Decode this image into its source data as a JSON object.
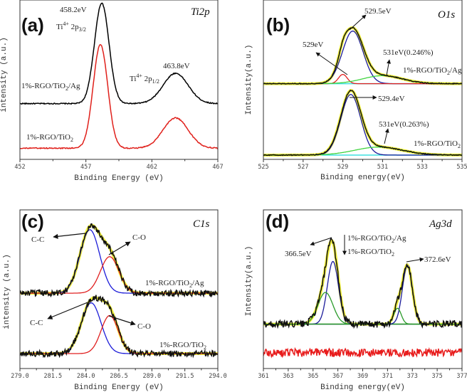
{
  "chart_data": [
    {
      "type": "line",
      "panel_label": "(a)",
      "title": "Ti2p",
      "xlabel": "Binding Energy (eV)",
      "ylabel": "intensity (a.u.)",
      "xlim": [
        452,
        467
      ],
      "xticks": [
        "452",
        "457",
        "462",
        "467"
      ],
      "ylim": [
        0,
        100
      ],
      "spectra": [
        {
          "label": {
            "main": "1%-RGO/TiO",
            "sub": "2",
            "tail": "/Ag"
          },
          "color": "#000000",
          "baseline": 35,
          "noise": 0.3,
          "peaks": [
            {
              "center": 458.2,
              "height": 63,
              "sigma": 0.55
            },
            {
              "center": 463.8,
              "height": 19,
              "sigma": 0.95
            }
          ]
        },
        {
          "label": {
            "main": "1%-RGO/TiO",
            "sub": "2",
            "tail": ""
          },
          "color": "#e0201b",
          "baseline": 7,
          "noise": 0.3,
          "peaks": [
            {
              "center": 458.1,
              "height": 65,
              "sigma": 0.55
            },
            {
              "center": 463.8,
              "height": 19,
              "sigma": 0.95
            }
          ]
        }
      ],
      "components": [],
      "annotations": [
        {
          "pre": "458.2eV",
          "sup": "",
          "mid": "",
          "sub": ""
        },
        {
          "pre": "Ti",
          "sup": "4+",
          "mid": " 2p",
          "sub": "3/2"
        },
        {
          "pre": "463.8eV",
          "sup": "",
          "mid": "",
          "sub": ""
        },
        {
          "pre": "Ti",
          "sup": "4+",
          "mid": " 2p",
          "sub": "1/2"
        }
      ]
    },
    {
      "type": "line",
      "panel_label": "(b)",
      "title": "O1s",
      "xlabel": "Binding energy(eV)",
      "ylabel": "Intensity(a.u.)",
      "xlim": [
        525,
        535
      ],
      "xticks": [
        "525",
        "527",
        "529",
        "531",
        "533",
        "535"
      ],
      "ylim": [
        0,
        100
      ],
      "envelope_color": "#f2f23a",
      "baseline_color": "#3fe0e0",
      "spectra": [
        {
          "label": {
            "main": "1%-RGO/TiO",
            "sub": "2",
            "tail": "/Ag"
          },
          "color": "#111111",
          "baseline": 47.5,
          "noise": 0.25,
          "peaks": [
            {
              "center": 529.5,
              "height": 33,
              "sigma": 0.52
            },
            {
              "center": 529.0,
              "height": 5.8,
              "sigma": 0.22
            },
            {
              "center": 531.0,
              "height": 5,
              "sigma": 1.0
            }
          ]
        },
        {
          "label": {
            "main": "1%-RGO/TiO",
            "sub": "2",
            "tail": ""
          },
          "color": "#111111",
          "baseline": 2.7,
          "noise": 0.25,
          "peaks": [
            {
              "center": 529.4,
              "height": 38,
              "sigma": 0.5
            },
            {
              "center": 530.8,
              "height": 5,
              "sigma": 1.2
            }
          ]
        }
      ],
      "components": [
        {
          "color": "#1c1c9a",
          "baseline": 47.5,
          "center": 529.5,
          "height": 33,
          "sigma": 0.52
        },
        {
          "color": "#e02020",
          "baseline": 47.5,
          "center": 529.0,
          "height": 5.8,
          "sigma": 0.22
        },
        {
          "color": "#3ed43e",
          "baseline": 47.5,
          "center": 531.0,
          "height": 5,
          "sigma": 1.0
        },
        {
          "color": "#1c1c9a",
          "baseline": 2.7,
          "center": 529.4,
          "height": 38,
          "sigma": 0.5
        },
        {
          "color": "#3ed43e",
          "baseline": 2.7,
          "center": 530.8,
          "height": 5,
          "sigma": 1.2
        }
      ],
      "annotations": [
        {
          "pre": "529.5eV",
          "sup": "",
          "mid": "",
          "sub": ""
        },
        {
          "pre": "529eV",
          "sup": "",
          "mid": "",
          "sub": ""
        },
        {
          "pre": "531eV(0.246%)",
          "sup": "",
          "mid": "",
          "sub": ""
        },
        {
          "pre": "529.4eV",
          "sup": "",
          "mid": "",
          "sub": ""
        },
        {
          "pre": "531eV(0.263%)",
          "sup": "",
          "mid": "",
          "sub": ""
        }
      ]
    },
    {
      "type": "line",
      "panel_label": "(c)",
      "title": "C1s",
      "xlabel": "Binding Energy (eV)",
      "ylabel": "intensity (a.u.)",
      "xlim": [
        279.0,
        294.0
      ],
      "xticks": [
        "279.0",
        "281.5",
        "284.0",
        "286.5",
        "289.0",
        "291.5",
        "294.0"
      ],
      "ylim": [
        0,
        100
      ],
      "envelope_color": "#f2f23a",
      "spectra": [
        {
          "label": {
            "main": "1%-RGO/TiO",
            "sub": "2",
            "tail": "/Ag"
          },
          "color": "#111111",
          "baseline": 47.5,
          "noise": 2.0,
          "peaks": [
            {
              "center": 284.3,
              "height": 40,
              "sigma": 0.75
            },
            {
              "center": 285.8,
              "height": 23,
              "sigma": 0.7
            }
          ]
        },
        {
          "label": {
            "main": "1%-RGO/TiO",
            "sub": "2",
            "tail": ""
          },
          "color": "#111111",
          "baseline": 9.4,
          "noise": 2.0,
          "peaks": [
            {
              "center": 284.4,
              "height": 32,
              "sigma": 0.75
            },
            {
              "center": 285.8,
              "height": 24,
              "sigma": 0.65
            }
          ]
        }
      ],
      "components": [
        {
          "color": "#1c1cd8",
          "baseline": 47.5,
          "center": 284.3,
          "height": 40,
          "sigma": 0.75
        },
        {
          "color": "#e02020",
          "baseline": 47.5,
          "center": 285.8,
          "height": 23,
          "sigma": 0.7
        },
        {
          "color": "#1c1cd8",
          "baseline": 9.4,
          "center": 284.4,
          "height": 32,
          "sigma": 0.75
        },
        {
          "color": "#e02020",
          "baseline": 9.4,
          "center": 285.8,
          "height": 24,
          "sigma": 0.65
        }
      ],
      "annotations": [
        {
          "pre": "C-C",
          "sup": "",
          "mid": "",
          "sub": ""
        },
        {
          "pre": "C-O",
          "sup": "",
          "mid": "",
          "sub": ""
        },
        {
          "pre": "C-C",
          "sup": "",
          "mid": "",
          "sub": ""
        },
        {
          "pre": "C-O",
          "sup": "",
          "mid": "",
          "sub": ""
        }
      ]
    },
    {
      "type": "line",
      "panel_label": "(d)",
      "title": "Ag3d",
      "xlabel": "Binding energy(eV)",
      "ylabel": "Intensity(a.u.)",
      "xlim": [
        361,
        377
      ],
      "xticks": [
        "361",
        "363",
        "365",
        "367",
        "369",
        "371",
        "373",
        "375",
        "377"
      ],
      "ylim": [
        0,
        100
      ],
      "envelope_color": "#f2f23a",
      "baseline_color": "#2a8a2a",
      "spectra": [
        {
          "label": {
            "main": "1%-RGO/TiO",
            "sub": "2",
            "tail": "/Ag"
          },
          "color": "#111111",
          "baseline": 28,
          "noise": 2.2,
          "peaks": [
            {
              "center": 366.6,
              "height": 39.5,
              "sigma": 0.45
            },
            {
              "center": 366.0,
              "height": 20,
              "sigma": 0.6
            },
            {
              "center": 372.6,
              "height": 37,
              "sigma": 0.4
            },
            {
              "center": 371.8,
              "height": 10,
              "sigma": 0.3
            }
          ]
        },
        {
          "label": {
            "main": "1%-RGO/TiO",
            "sub": "2",
            "tail": ""
          },
          "color": "#e81c1c",
          "baseline": 10,
          "noise": 2.6,
          "peaks": []
        }
      ],
      "components": [
        {
          "color": "#1c1c9a",
          "baseline": 28,
          "center": 366.6,
          "height": 39.5,
          "sigma": 0.45
        },
        {
          "color": "#2a9a2a",
          "baseline": 28,
          "center": 366.0,
          "height": 20,
          "sigma": 0.6
        },
        {
          "color": "#1c1c9a",
          "baseline": 28,
          "center": 372.6,
          "height": 37,
          "sigma": 0.4
        },
        {
          "color": "#2a9a2a",
          "baseline": 28,
          "center": 371.8,
          "height": 10,
          "sigma": 0.3
        }
      ],
      "annotations": [
        {
          "pre": "366.5eV",
          "sup": "",
          "mid": "",
          "sub": ""
        },
        {
          "pre": "372.6eV",
          "sup": "",
          "mid": "",
          "sub": ""
        }
      ]
    }
  ]
}
